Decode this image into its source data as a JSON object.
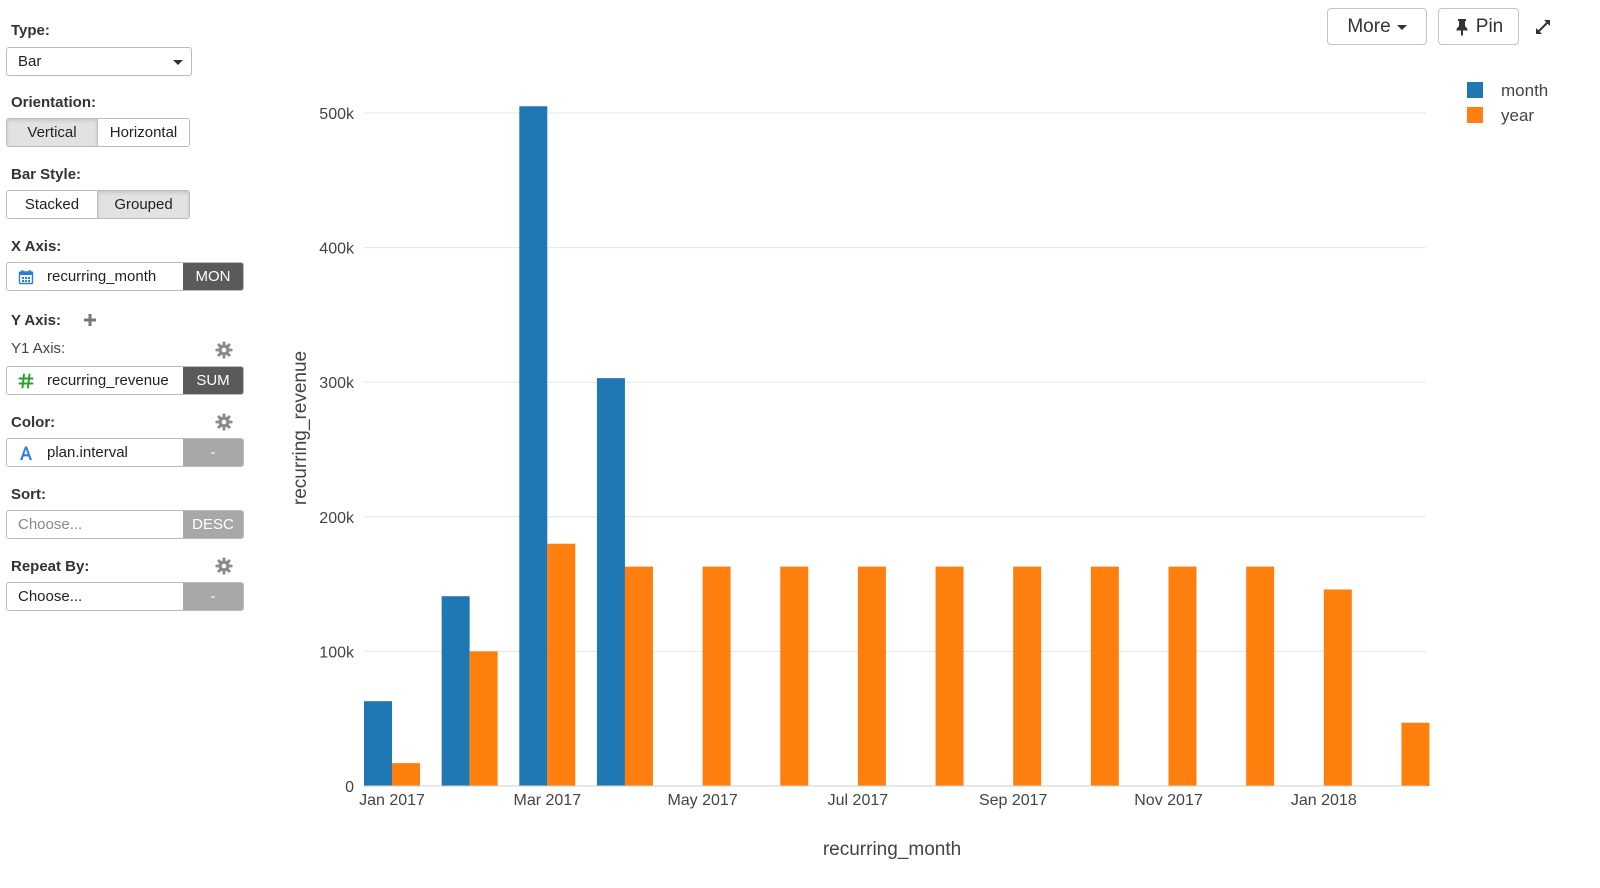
{
  "sidebar": {
    "type": {
      "label": "Type:",
      "value": "Bar"
    },
    "orientation": {
      "label": "Orientation:",
      "options": [
        "Vertical",
        "Horizontal"
      ],
      "selected": "Vertical"
    },
    "bar_style": {
      "label": "Bar Style:",
      "options": [
        "Stacked",
        "Grouped"
      ],
      "selected": "Grouped"
    },
    "x_axis": {
      "label": "X Axis:",
      "field": "recurring_month",
      "tag": "MON",
      "icon": "calendar-icon"
    },
    "y_axis": {
      "label": "Y Axis:",
      "sub_label": "Y1 Axis:",
      "field": "recurring_revenue",
      "tag": "SUM",
      "icon": "hash-icon"
    },
    "color": {
      "label": "Color:",
      "field": "plan.interval",
      "tag": "-",
      "icon": "text-type-icon"
    },
    "sort": {
      "label": "Sort:",
      "placeholder": "Choose...",
      "tag": "DESC"
    },
    "repeat_by": {
      "label": "Repeat By:",
      "value": "Choose...",
      "tag": "-"
    }
  },
  "toolbar": {
    "more_label": "More",
    "pin_label": "Pin"
  },
  "colors": {
    "month": "#1f77b4",
    "year": "#ff7f0e",
    "grid": "#e6e6e6"
  },
  "chart_data": {
    "type": "bar",
    "bar_mode": "grouped",
    "orientation": "vertical",
    "xlabel": "recurring_month",
    "ylabel": "recurring_revenue",
    "ylim": [
      0,
      520000
    ],
    "yticks": [
      0,
      100000,
      200000,
      300000,
      400000,
      500000
    ],
    "ytick_labels": [
      "0",
      "100k",
      "200k",
      "300k",
      "400k",
      "500k"
    ],
    "categories": [
      "2017-01",
      "2017-02",
      "2017-03",
      "2017-04",
      "2017-05",
      "2017-06",
      "2017-07",
      "2017-08",
      "2017-09",
      "2017-10",
      "2017-11",
      "2017-12",
      "2018-01",
      "2018-02"
    ],
    "xtick_labels": [
      {
        "label": "Jan 2017",
        "at": "2017-01"
      },
      {
        "label": "Mar 2017",
        "at": "2017-03"
      },
      {
        "label": "May 2017",
        "at": "2017-05"
      },
      {
        "label": "Jul 2017",
        "at": "2017-07"
      },
      {
        "label": "Sep 2017",
        "at": "2017-09"
      },
      {
        "label": "Nov 2017",
        "at": "2017-11"
      },
      {
        "label": "Jan 2018",
        "at": "2018-01"
      }
    ],
    "series": [
      {
        "name": "month",
        "values": [
          63000,
          141000,
          505000,
          303000,
          null,
          null,
          null,
          null,
          null,
          null,
          null,
          null,
          null,
          null
        ]
      },
      {
        "name": "year",
        "values": [
          17000,
          100000,
          180000,
          163000,
          163000,
          163000,
          163000,
          163000,
          163000,
          163000,
          163000,
          163000,
          146000,
          47000
        ]
      }
    ],
    "grid": true,
    "legend_position": "top-right"
  }
}
